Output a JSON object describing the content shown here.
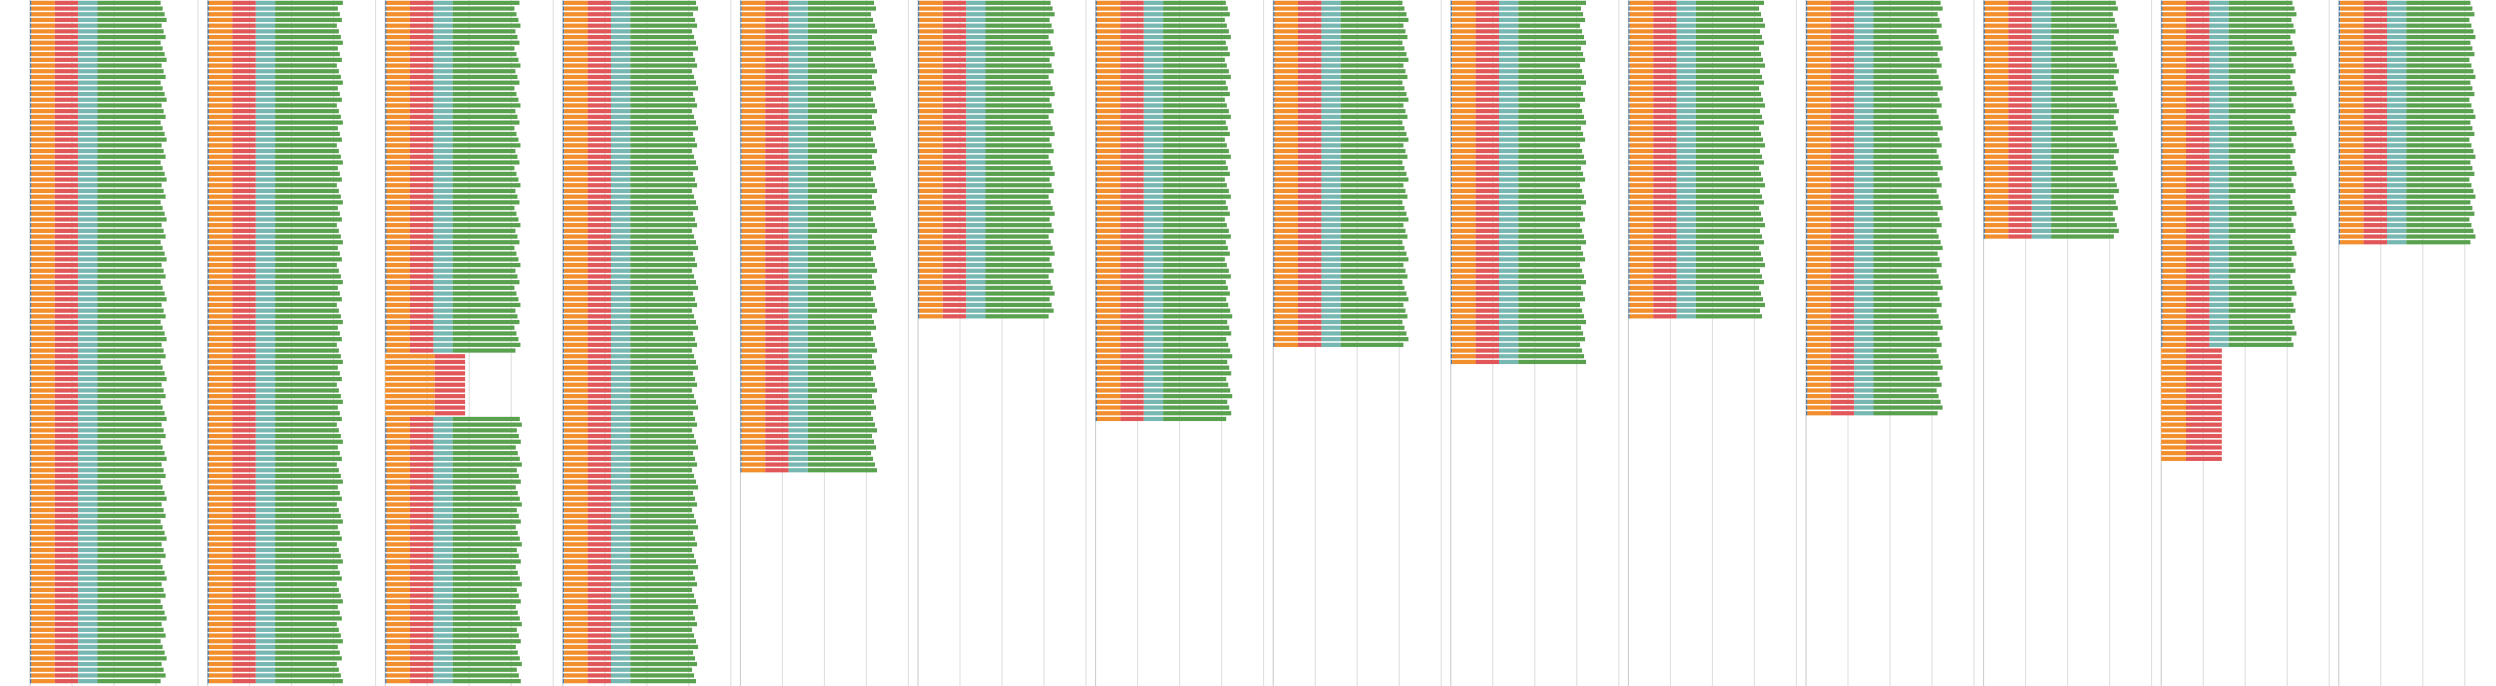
{
  "chart_data": {
    "type": "bar",
    "orientation": "horizontal",
    "stacked": true,
    "title": "",
    "xlabel": "",
    "ylabel": "",
    "grid": true,
    "legend": "none",
    "segment_order": [
      "blue",
      "orange",
      "red",
      "teal",
      "green"
    ],
    "colors": {
      "blue": "#4e79a7",
      "orange": "#f28e2b",
      "red": "#e15759",
      "teal": "#76b7b2",
      "green": "#59a14f",
      "grid": "#dcdcdc",
      "background": "#ffffff"
    },
    "panels": [
      {
        "bars": 120,
        "xlim": [
          0,
          100
        ],
        "segments": [
          {
            "bars": 120,
            "values": [
              1,
              17,
              17,
              14,
              48
            ]
          }
        ]
      },
      {
        "bars": 120,
        "xlim": [
          0,
          100
        ],
        "segments": [
          {
            "bars": 120,
            "values": [
              1,
              17,
              17,
              14,
              47
            ]
          }
        ]
      },
      {
        "bars": 120,
        "xlim": [
          0,
          100
        ],
        "segments": [
          {
            "bars": 62,
            "values": [
              1,
              17,
              17,
              14,
              47
            ]
          },
          {
            "bars": 11,
            "values": [
              0,
              36,
              22,
              0,
              0
            ]
          },
          {
            "bars": 47,
            "values": [
              1,
              17,
              17,
              14,
              48
            ]
          }
        ]
      },
      {
        "bars": 120,
        "xlim": [
          0,
          100
        ],
        "segments": [
          {
            "bars": 120,
            "values": [
              1,
              17,
              17,
              14,
              47
            ]
          }
        ]
      },
      {
        "bars": 83,
        "xlim": [
          0,
          100
        ],
        "segments": [
          {
            "bars": 83,
            "values": [
              1,
              17,
              17,
              14,
              48
            ]
          }
        ]
      },
      {
        "bars": 56,
        "xlim": [
          0,
          100
        ],
        "segments": [
          {
            "bars": 56,
            "values": [
              1,
              17,
              17,
              14,
              48
            ]
          }
        ]
      },
      {
        "bars": 74,
        "xlim": [
          0,
          100
        ],
        "segments": [
          {
            "bars": 52,
            "values": [
              1,
              17,
              17,
              14,
              47
            ]
          },
          {
            "bars": 22,
            "values": [
              1,
              17,
              17,
              14,
              48
            ]
          }
        ]
      },
      {
        "bars": 61,
        "xlim": [
          0,
          100
        ],
        "segments": [
          {
            "bars": 61,
            "values": [
              1,
              17,
              17,
              14,
              47
            ]
          }
        ]
      },
      {
        "bars": 64,
        "xlim": [
          0,
          100
        ],
        "segments": [
          {
            "bars": 64,
            "values": [
              1,
              17,
              17,
              14,
              47
            ]
          }
        ]
      },
      {
        "bars": 56,
        "xlim": [
          0,
          100
        ],
        "segments": [
          {
            "bars": 56,
            "values": [
              1,
              17,
              17,
              14,
              48
            ]
          }
        ]
      },
      {
        "bars": 73,
        "xlim": [
          0,
          100
        ],
        "segments": [
          {
            "bars": 73,
            "values": [
              1,
              17,
              17,
              14,
              48
            ]
          }
        ]
      },
      {
        "bars": 42,
        "xlim": [
          0,
          100
        ],
        "segments": [
          {
            "bars": 42,
            "values": [
              1,
              17,
              17,
              14,
              47
            ]
          }
        ]
      },
      {
        "bars": 81,
        "xlim": [
          0,
          100
        ],
        "segments": [
          {
            "bars": 61,
            "values": [
              1,
              17,
              17,
              14,
              47
            ]
          },
          {
            "bars": 20,
            "values": [
              0,
              18,
              26,
              0,
              0
            ]
          }
        ]
      },
      {
        "bars": 43,
        "xlim": [
          0,
          100
        ],
        "segments": [
          {
            "bars": 43,
            "values": [
              1,
              17,
              17,
              14,
              48
            ]
          }
        ]
      }
    ]
  }
}
